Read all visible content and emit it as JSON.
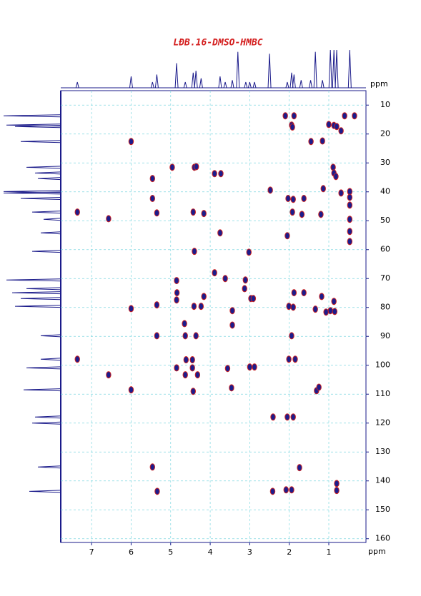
{
  "chart_data": {
    "type": "scatter",
    "title": "LĐB.16-DMSO-HMBC",
    "xlabel": "ppm",
    "ylabel": "ppm",
    "xlim": [
      7.78,
      0.06
    ],
    "ylim": [
      5,
      161.3
    ],
    "xticks": [
      7,
      6,
      5,
      4,
      3,
      2,
      1
    ],
    "yticks": [
      10,
      20,
      30,
      40,
      50,
      60,
      70,
      80,
      90,
      100,
      110,
      120,
      130,
      140,
      150,
      160
    ],
    "grid": true,
    "color": "#1c1c8c",
    "edge_color": "#cc2222",
    "x": [
      2.1,
      1.88,
      1.94,
      1.92,
      1.0,
      0.87,
      0.8,
      0.6,
      0.35,
      0.69,
      6.0,
      1.45,
      1.16,
      4.96,
      4.4,
      4.35,
      0.89,
      0.87,
      0.82,
      5.46,
      3.89,
      3.73,
      2.48,
      1.14,
      0.69,
      0.47,
      0.47,
      0.47,
      2.03,
      1.9,
      1.63,
      5.46,
      7.36,
      6.57,
      5.35,
      4.43,
      4.16,
      1.92,
      1.68,
      1.2,
      0.47,
      0.47,
      0.47,
      3.75,
      2.05,
      4.4,
      3.02,
      4.85,
      4.84,
      4.85,
      3.11,
      3.13,
      3.62,
      3.89,
      2.97,
      2.91,
      1.88,
      1.63,
      1.18,
      6.0,
      5.35,
      4.41,
      4.23,
      4.16,
      3.44,
      3.44,
      2.01,
      1.9,
      1.34,
      0.96,
      0.87,
      0.85,
      1.07,
      5.35,
      4.63,
      4.36,
      4.65,
      1.94,
      7.36,
      4.61,
      4.45,
      2.01,
      1.85,
      4.85,
      4.45,
      3.56,
      3.0,
      2.88,
      4.63,
      4.32,
      6.57,
      6.0,
      4.43,
      3.46,
      1.31,
      1.25,
      2.05,
      1.9,
      2.41,
      5.46,
      1.74,
      5.34,
      2.42,
      2.08,
      1.94,
      0.8,
      0.8
    ],
    "values": [
      13.7,
      13.7,
      16.9,
      17.6,
      16.7,
      17.0,
      17.4,
      13.7,
      13.7,
      18.9,
      22.6,
      22.6,
      22.4,
      31.5,
      31.5,
      31.3,
      31.5,
      33.5,
      34.7,
      35.4,
      33.7,
      33.7,
      39.4,
      38.9,
      40.4,
      39.9,
      41.9,
      44.6,
      42.3,
      42.6,
      42.3,
      42.3,
      47.0,
      49.3,
      47.3,
      47.0,
      47.5,
      47.0,
      47.8,
      47.8,
      49.5,
      53.7,
      57.2,
      54.2,
      55.2,
      60.6,
      60.9,
      70.7,
      74.9,
      77.4,
      70.5,
      73.5,
      70.0,
      68.0,
      76.9,
      76.9,
      74.9,
      74.9,
      76.2,
      80.4,
      79.1,
      79.6,
      79.6,
      76.2,
      81.1,
      86.1,
      79.6,
      79.9,
      80.6,
      81.1,
      77.9,
      81.4,
      81.6,
      89.8,
      89.8,
      89.8,
      85.6,
      89.8,
      97.9,
      98.1,
      98.1,
      97.9,
      97.9,
      100.9,
      100.9,
      101.1,
      100.6,
      100.6,
      103.3,
      103.3,
      103.3,
      108.5,
      109.0,
      107.8,
      108.8,
      107.6,
      117.9,
      117.9,
      117.9,
      135.2,
      135.4,
      143.6,
      143.6,
      143.1,
      143.1,
      143.3,
      140.9
    ],
    "top_projection": {
      "x": [
        7.36,
        6.0,
        5.46,
        5.35,
        4.85,
        4.63,
        4.43,
        4.36,
        4.23,
        3.75,
        3.62,
        3.44,
        3.3,
        3.1,
        3.0,
        2.88,
        2.5,
        2.05,
        1.94,
        1.88,
        1.7,
        1.46,
        1.34,
        1.16,
        0.96,
        0.87,
        0.8,
        0.47
      ],
      "values": [
        15,
        30,
        15,
        35,
        65,
        15,
        40,
        45,
        25,
        30,
        15,
        20,
        95,
        15,
        15,
        15,
        90,
        15,
        40,
        35,
        20,
        20,
        95,
        20,
        100,
        100,
        100,
        100
      ]
    },
    "side_projection": {
      "x": [
        13.7,
        16.9,
        17.4,
        22.6,
        31.5,
        33.5,
        35.4,
        39.9,
        40.4,
        42.3,
        47.0,
        49.5,
        54.2,
        60.6,
        70.5,
        73.5,
        74.9,
        76.9,
        79.6,
        89.8,
        97.9,
        100.9,
        108.5,
        117.9,
        120.0,
        135.2,
        143.6
      ],
      "values": [
        100,
        95,
        80,
        70,
        60,
        45,
        40,
        100,
        100,
        70,
        50,
        30,
        35,
        50,
        95,
        60,
        85,
        70,
        80,
        35,
        35,
        60,
        65,
        45,
        50,
        40,
        55
      ]
    }
  }
}
